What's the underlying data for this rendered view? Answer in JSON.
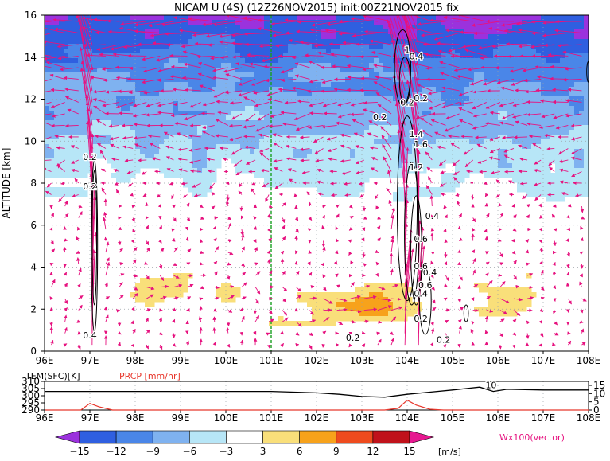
{
  "chart_data": {
    "type": "contour",
    "title": "NICAM U (4S)  (12Z26NOV2015)  init:00Z21NOV2015  fix",
    "main": {
      "ylabel": "ALTITUDE [km]",
      "x_ticks": [
        "96E",
        "97E",
        "98E",
        "99E",
        "100E",
        "101E",
        "102E",
        "103E",
        "104E",
        "105E",
        "106E",
        "107E",
        "108E"
      ],
      "x_range": [
        96,
        108
      ],
      "y_ticks": [
        0,
        2,
        4,
        6,
        8,
        10,
        12,
        14,
        16
      ],
      "y_range": [
        0,
        16
      ],
      "grid": true,
      "reference_line_x": 101,
      "colorbar": {
        "levels": [
          -15,
          -12,
          -9,
          -6,
          -3,
          3,
          6,
          9,
          12,
          15
        ],
        "colors": [
          "#9b32dd",
          "#2f5fe0",
          "#4a86e8",
          "#7fb2f0",
          "#b7e6f7",
          "#ffffff",
          "#f9df7a",
          "#f7a21b",
          "#ee4b1e",
          "#c0121b",
          "#e61890"
        ],
        "unit": "[m/s]"
      },
      "vector_legend": "Wx100(vector)",
      "contour_labels": [
        "0.2",
        "0.2",
        "0.4",
        "0.2",
        "0.2",
        "0.2",
        "0.2",
        "0.4",
        "1",
        "1.2",
        "1.4",
        "1.6",
        "0.4",
        "0.6",
        "0.4",
        "0.6",
        "0.4",
        "0.2",
        "0.2",
        "0.6"
      ]
    },
    "surface": {
      "left_label": "TEM(SFC)[K]",
      "right_label": "PRCP [mm/hr]",
      "left_ticks": [
        290,
        295,
        300,
        305,
        310
      ],
      "right_ticks": [
        0,
        5,
        10,
        15
      ],
      "curve_label": "10",
      "series": [
        {
          "name": "TEM(SFC)[K]",
          "x": [
            96,
            97,
            98,
            99,
            100,
            101,
            102,
            102.5,
            103,
            103.5,
            104,
            104.5,
            105,
            105.3,
            105.6,
            105.9,
            106.2,
            107,
            108
          ],
          "values": [
            303,
            303,
            303,
            303,
            303,
            303,
            302,
            301,
            299.5,
            299,
            301,
            302.5,
            304,
            305,
            306,
            303,
            304.5,
            304,
            304
          ]
        },
        {
          "name": "PRCP [mm/hr]",
          "x": [
            96,
            96.8,
            97,
            97.2,
            97.5,
            103.5,
            103.8,
            104,
            104.2,
            104.5,
            104.8,
            108
          ],
          "values": [
            0,
            0,
            4,
            2,
            0,
            0,
            1,
            6,
            3,
            0.5,
            0,
            0
          ]
        }
      ]
    }
  }
}
